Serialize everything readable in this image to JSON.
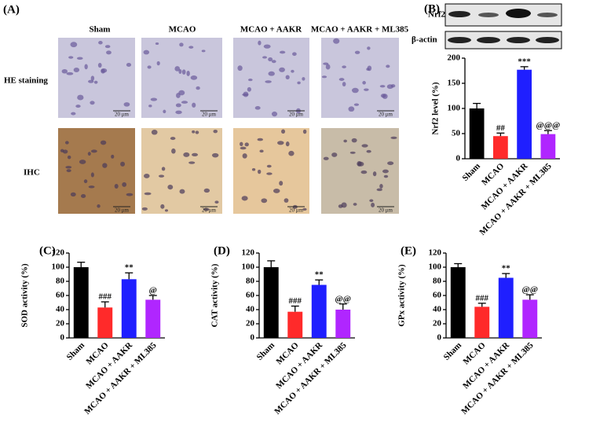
{
  "panel_a": {
    "panel_label": "(A)",
    "columns": [
      "Sham",
      "MCAO",
      "MCAO + AAKR",
      "MCAO + AAKR + ML385"
    ],
    "rows": [
      "HE staining",
      "IHC"
    ],
    "scale_bar": "20 μm"
  },
  "blot": {
    "labels": [
      "Nrf2",
      "β-actin"
    ]
  },
  "chart_data": [
    {
      "type": "bar",
      "panel_label": "(B)",
      "y_label": "Nrf2 level (%)",
      "categories": [
        "Sham",
        "MCAO",
        "MCAO + AAKR",
        "MCAO + AAKR + ML385"
      ],
      "values": [
        100,
        45,
        177,
        49
      ],
      "errors": [
        10,
        6,
        6,
        7
      ],
      "annotations": [
        null,
        "##",
        "***",
        "@@@"
      ],
      "colors": [
        "#000000",
        "#ff2a2a",
        "#1f1fff",
        "#b026ff"
      ],
      "ylim": [
        0,
        200
      ],
      "yticks": [
        0,
        50,
        100,
        150,
        200
      ]
    },
    {
      "type": "bar",
      "panel_label": "(C)",
      "y_label": "SOD activity (%)",
      "categories": [
        "Sham",
        "MCAO",
        "MCAO + AAKR",
        "MCAO + AAKR + ML385"
      ],
      "values": [
        100,
        43,
        83,
        54
      ],
      "errors": [
        7,
        8,
        9,
        6
      ],
      "annotations": [
        null,
        "###",
        "**",
        "@"
      ],
      "colors": [
        "#000000",
        "#ff2a2a",
        "#1f1fff",
        "#b026ff"
      ],
      "ylim": [
        0,
        120
      ],
      "yticks": [
        0,
        20,
        40,
        60,
        80,
        100,
        120
      ]
    },
    {
      "type": "bar",
      "panel_label": "(D)",
      "y_label": "CAT activity (%)",
      "categories": [
        "Sham",
        "MCAO",
        "MCAO + AAKR",
        "MCAO + AAKR + ML385"
      ],
      "values": [
        100,
        37,
        75,
        40
      ],
      "errors": [
        9,
        8,
        7,
        8
      ],
      "annotations": [
        null,
        "###",
        "**",
        "@@"
      ],
      "colors": [
        "#000000",
        "#ff2a2a",
        "#1f1fff",
        "#b026ff"
      ],
      "ylim": [
        0,
        120
      ],
      "yticks": [
        0,
        20,
        40,
        60,
        80,
        100,
        120
      ]
    },
    {
      "type": "bar",
      "panel_label": "(E)",
      "y_label": "GPx activity (%)",
      "categories": [
        "Sham",
        "MCAO",
        "MCAO + AAKR",
        "MCAO + AAKR + ML385"
      ],
      "values": [
        100,
        44,
        85,
        54
      ],
      "errors": [
        5,
        5,
        6,
        7
      ],
      "annotations": [
        null,
        "###",
        "**",
        "@@"
      ],
      "colors": [
        "#000000",
        "#ff2a2a",
        "#1f1fff",
        "#b026ff"
      ],
      "ylim": [
        0,
        120
      ],
      "yticks": [
        0,
        20,
        40,
        60,
        80,
        100,
        120
      ]
    }
  ]
}
